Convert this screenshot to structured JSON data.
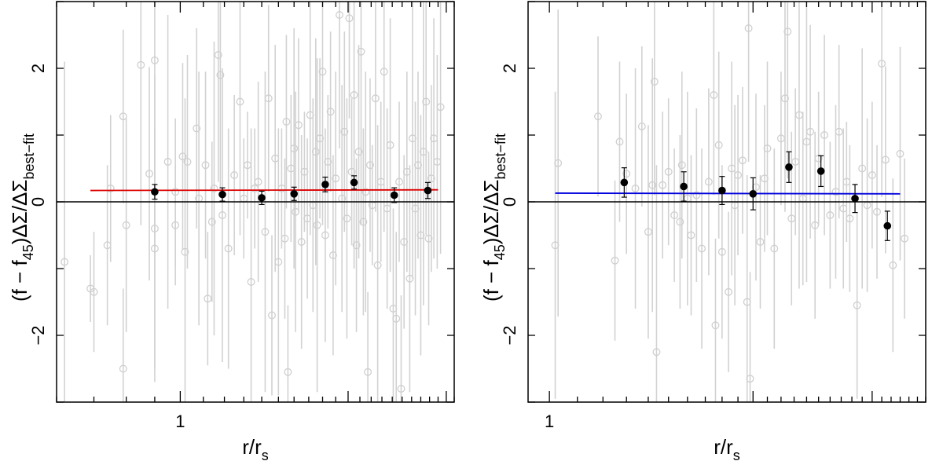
{
  "chart_data": [
    {
      "type": "scatter",
      "xscale": "log",
      "xlim": [
        0.6,
        3.1
      ],
      "ylim": [
        -3,
        3
      ],
      "xticks": [
        {
          "value": 1,
          "label": "1"
        }
      ],
      "yticks": [
        {
          "value": -2,
          "label": "−2"
        },
        {
          "value": 0,
          "label": "0"
        },
        {
          "value": 2,
          "label": "2"
        }
      ],
      "xlabel": "r/r_s",
      "ylabel": "(f−f45)ΔΣ/ΔΣbest-fit",
      "reference_line": 0,
      "fit": {
        "color": "#dd0000",
        "x": [
          0.69,
          2.9
        ],
        "y": [
          0.17,
          0.18
        ]
      },
      "binned": [
        {
          "x": 0.9,
          "y": 0.15,
          "err": 0.11
        },
        {
          "x": 1.19,
          "y": 0.11,
          "err": 0.1
        },
        {
          "x": 1.4,
          "y": 0.06,
          "err": 0.1
        },
        {
          "x": 1.6,
          "y": 0.12,
          "err": 0.1
        },
        {
          "x": 1.82,
          "y": 0.26,
          "err": 0.11
        },
        {
          "x": 2.05,
          "y": 0.29,
          "err": 0.1
        },
        {
          "x": 2.42,
          "y": 0.1,
          "err": 0.11
        },
        {
          "x": 2.78,
          "y": 0.17,
          "err": 0.12
        }
      ],
      "scatter": [
        {
          "x": 0.62,
          "y": -0.9,
          "err": 3.0
        },
        {
          "x": 0.69,
          "y": -1.3,
          "err": 0.5
        },
        {
          "x": 0.7,
          "y": -1.35,
          "err": 0.9
        },
        {
          "x": 0.74,
          "y": -0.65,
          "err": 1.2
        },
        {
          "x": 0.75,
          "y": 0.2,
          "err": 1.1
        },
        {
          "x": 0.79,
          "y": -2.5,
          "err": 1.2
        },
        {
          "x": 0.79,
          "y": 1.28,
          "err": 1.3
        },
        {
          "x": 0.8,
          "y": -0.35,
          "err": 1.6
        },
        {
          "x": 0.85,
          "y": 2.05,
          "err": 2.4
        },
        {
          "x": 0.88,
          "y": 0.42,
          "err": 1.6
        },
        {
          "x": 0.9,
          "y": 2.12,
          "err": 2.8
        },
        {
          "x": 0.9,
          "y": -0.4,
          "err": 2.3
        },
        {
          "x": 0.9,
          "y": -0.7,
          "err": 1.8
        },
        {
          "x": 0.95,
          "y": 0.6,
          "err": 2.2
        },
        {
          "x": 0.98,
          "y": 0.15,
          "err": 1.1
        },
        {
          "x": 0.98,
          "y": -0.35,
          "err": 0.9
        },
        {
          "x": 1.01,
          "y": 0.68,
          "err": 1.4
        },
        {
          "x": 1.02,
          "y": -0.75,
          "err": 2.3
        },
        {
          "x": 1.03,
          "y": 0.6,
          "err": 1.6
        },
        {
          "x": 1.07,
          "y": 1.1,
          "err": 1.5
        },
        {
          "x": 1.08,
          "y": 0.05,
          "err": 1.9
        },
        {
          "x": 1.11,
          "y": 0.55,
          "err": 1.4
        },
        {
          "x": 1.12,
          "y": -1.45,
          "err": 1.0
        },
        {
          "x": 1.14,
          "y": -0.3,
          "err": 1.2
        },
        {
          "x": 1.15,
          "y": 0.2,
          "err": 2.2
        },
        {
          "x": 1.17,
          "y": 2.2,
          "err": 1.9
        },
        {
          "x": 1.18,
          "y": 1.9,
          "err": 1.7
        },
        {
          "x": 1.19,
          "y": -0.2,
          "err": 2.2
        },
        {
          "x": 1.22,
          "y": -0.7,
          "err": 1.8
        },
        {
          "x": 1.25,
          "y": 0.4,
          "err": 1.2
        },
        {
          "x": 1.28,
          "y": 1.5,
          "err": 2.0
        },
        {
          "x": 1.3,
          "y": 0.05,
          "err": 0.9
        },
        {
          "x": 1.32,
          "y": 0.55,
          "err": 0.8
        },
        {
          "x": 1.34,
          "y": -1.2,
          "err": 2.3
        },
        {
          "x": 1.36,
          "y": 0.2,
          "err": 0.9
        },
        {
          "x": 1.38,
          "y": 0.3,
          "err": 1.5
        },
        {
          "x": 1.42,
          "y": -0.45,
          "err": 2.4
        },
        {
          "x": 1.44,
          "y": 1.55,
          "err": 1.4
        },
        {
          "x": 1.46,
          "y": -1.7,
          "err": 1.2
        },
        {
          "x": 1.48,
          "y": 0.65,
          "err": 1.7
        },
        {
          "x": 1.5,
          "y": -0.9,
          "err": 2.0
        },
        {
          "x": 1.52,
          "y": 0.2,
          "err": 0.9
        },
        {
          "x": 1.54,
          "y": -0.55,
          "err": 1.2
        },
        {
          "x": 1.55,
          "y": 1.2,
          "err": 1.3
        },
        {
          "x": 1.56,
          "y": -2.55,
          "err": 1.0
        },
        {
          "x": 1.58,
          "y": 0.5,
          "err": 1.1
        },
        {
          "x": 1.6,
          "y": 0.8,
          "err": 1.8
        },
        {
          "x": 1.61,
          "y": -0.15,
          "err": 1.8
        },
        {
          "x": 1.63,
          "y": 1.15,
          "err": 1.3
        },
        {
          "x": 1.65,
          "y": -0.6,
          "err": 1.6
        },
        {
          "x": 1.67,
          "y": 0.45,
          "err": 0.9
        },
        {
          "x": 1.69,
          "y": -0.25,
          "err": 1.2
        },
        {
          "x": 1.71,
          "y": 1.3,
          "err": 1.8
        },
        {
          "x": 1.73,
          "y": -0.05,
          "err": 1.6
        },
        {
          "x": 1.75,
          "y": 0.75,
          "err": 1.7
        },
        {
          "x": 1.76,
          "y": -0.35,
          "err": 2.5
        },
        {
          "x": 1.78,
          "y": 0.95,
          "err": 1.2
        },
        {
          "x": 1.8,
          "y": 1.95,
          "err": 2.3
        },
        {
          "x": 1.82,
          "y": -0.5,
          "err": 1.6
        },
        {
          "x": 1.84,
          "y": 0.6,
          "err": 1.0
        },
        {
          "x": 1.86,
          "y": 1.35,
          "err": 1.2
        },
        {
          "x": 1.88,
          "y": -0.8,
          "err": 1.5
        },
        {
          "x": 1.9,
          "y": 0.35,
          "err": 1.6
        },
        {
          "x": 1.93,
          "y": 2.8,
          "err": 2.0
        },
        {
          "x": 1.95,
          "y": 0.05,
          "err": 1.7
        },
        {
          "x": 1.97,
          "y": 1.05,
          "err": 1.5
        },
        {
          "x": 1.99,
          "y": -0.25,
          "err": 1.8
        },
        {
          "x": 2.01,
          "y": 2.75,
          "err": 1.5
        },
        {
          "x": 2.03,
          "y": 0.45,
          "err": 1.1
        },
        {
          "x": 2.05,
          "y": 1.6,
          "err": 2.6
        },
        {
          "x": 2.07,
          "y": -0.65,
          "err": 1.3
        },
        {
          "x": 2.09,
          "y": 0.75,
          "err": 1.6
        },
        {
          "x": 2.11,
          "y": 2.25,
          "err": 2.6
        },
        {
          "x": 2.13,
          "y": -0.3,
          "err": 1.4
        },
        {
          "x": 2.15,
          "y": 0.15,
          "err": 1.8
        },
        {
          "x": 2.17,
          "y": -2.55,
          "err": 1.2
        },
        {
          "x": 2.19,
          "y": 0.55,
          "err": 1.3
        },
        {
          "x": 2.21,
          "y": -0.05,
          "err": 0.9
        },
        {
          "x": 2.24,
          "y": 1.55,
          "err": 1.7
        },
        {
          "x": 2.26,
          "y": -0.95,
          "err": 2.1
        },
        {
          "x": 2.29,
          "y": 0.3,
          "err": 1.2
        },
        {
          "x": 2.32,
          "y": 1.95,
          "err": 2.4
        },
        {
          "x": 2.35,
          "y": -0.1,
          "err": 1.5
        },
        {
          "x": 2.38,
          "y": 0.85,
          "err": 1.9
        },
        {
          "x": 2.41,
          "y": -1.6,
          "err": 1.5
        },
        {
          "x": 2.44,
          "y": -1.75,
          "err": 1.3
        },
        {
          "x": 2.47,
          "y": 0.3,
          "err": 1.2
        },
        {
          "x": 2.49,
          "y": -2.8,
          "err": 1.4
        },
        {
          "x": 2.52,
          "y": -0.6,
          "err": 1.3
        },
        {
          "x": 2.55,
          "y": 0.45,
          "err": 1.5
        },
        {
          "x": 2.58,
          "y": -1.15,
          "err": 1.7
        },
        {
          "x": 2.61,
          "y": 0.95,
          "err": 2.1
        },
        {
          "x": 2.64,
          "y": -0.1,
          "err": 1.6
        },
        {
          "x": 2.67,
          "y": 0.55,
          "err": 1.4
        },
        {
          "x": 2.7,
          "y": -0.5,
          "err": 1.8
        },
        {
          "x": 2.73,
          "y": 0.75,
          "err": 2.3
        },
        {
          "x": 2.76,
          "y": 1.5,
          "err": 2.0
        },
        {
          "x": 2.79,
          "y": -0.55,
          "err": 1.3
        },
        {
          "x": 2.82,
          "y": 0.35,
          "err": 1.4
        },
        {
          "x": 2.85,
          "y": 0.95,
          "err": 1.8
        },
        {
          "x": 2.89,
          "y": 0.6,
          "err": 1.6
        },
        {
          "x": 2.93,
          "y": 1.42,
          "err": 2.2
        }
      ]
    },
    {
      "type": "scatter",
      "xscale": "log",
      "xlim": [
        0.93,
        3.6
      ],
      "ylim": [
        -3,
        3
      ],
      "xticks": [
        {
          "value": 1,
          "label": "1"
        }
      ],
      "yticks": [
        {
          "value": -2,
          "label": "−2"
        },
        {
          "value": 0,
          "label": "0"
        },
        {
          "value": 2,
          "label": "2"
        }
      ],
      "xlabel": "r/r_s",
      "ylabel": "(f−f45)ΔΣ/ΔΣbest-fit",
      "reference_line": 0,
      "fit": {
        "color": "#0000dd",
        "x": [
          1.02,
          3.3
        ],
        "y": [
          0.13,
          0.12
        ]
      },
      "binned": [
        {
          "x": 1.29,
          "y": 0.29,
          "err": 0.22
        },
        {
          "x": 1.58,
          "y": 0.23,
          "err": 0.22
        },
        {
          "x": 1.8,
          "y": 0.17,
          "err": 0.21
        },
        {
          "x": 2.0,
          "y": 0.12,
          "err": 0.24
        },
        {
          "x": 2.26,
          "y": 0.52,
          "err": 0.23
        },
        {
          "x": 2.52,
          "y": 0.46,
          "err": 0.23
        },
        {
          "x": 2.83,
          "y": 0.05,
          "err": 0.21
        },
        {
          "x": 3.16,
          "y": -0.36,
          "err": 0.22
        }
      ],
      "scatter": [
        {
          "x": 1.02,
          "y": -0.65,
          "err": 2.3
        },
        {
          "x": 1.03,
          "y": 0.58,
          "err": 2.3
        },
        {
          "x": 1.18,
          "y": 1.28,
          "err": 1.2
        },
        {
          "x": 1.25,
          "y": -0.88,
          "err": 1.2
        },
        {
          "x": 1.27,
          "y": 0.9,
          "err": 1.2
        },
        {
          "x": 1.3,
          "y": 0.42,
          "err": 1.2
        },
        {
          "x": 1.34,
          "y": 0.2,
          "err": 1.8
        },
        {
          "x": 1.37,
          "y": 1.13,
          "err": 1.2
        },
        {
          "x": 1.4,
          "y": -0.45,
          "err": 1.6
        },
        {
          "x": 1.42,
          "y": 0.25,
          "err": 1.9
        },
        {
          "x": 1.43,
          "y": 1.8,
          "err": 1.7
        },
        {
          "x": 1.44,
          "y": -2.25,
          "err": 2.8
        },
        {
          "x": 1.47,
          "y": 0.25,
          "err": 1.1
        },
        {
          "x": 1.5,
          "y": 0.45,
          "err": 1.1
        },
        {
          "x": 1.53,
          "y": -0.2,
          "err": 1.0
        },
        {
          "x": 1.56,
          "y": -0.3,
          "err": 1.3
        },
        {
          "x": 1.57,
          "y": 0.55,
          "err": 1.4
        },
        {
          "x": 1.6,
          "y": 0.05,
          "err": 1.6
        },
        {
          "x": 1.62,
          "y": -0.5,
          "err": 1.2
        },
        {
          "x": 1.65,
          "y": 0.1,
          "err": 1.3
        },
        {
          "x": 1.68,
          "y": -0.7,
          "err": 1.5
        },
        {
          "x": 1.72,
          "y": 0.3,
          "err": 1.4
        },
        {
          "x": 1.75,
          "y": 1.6,
          "err": 1.5
        },
        {
          "x": 1.76,
          "y": -1.85,
          "err": 1.3
        },
        {
          "x": 1.78,
          "y": 0.85,
          "err": 1.4
        },
        {
          "x": 1.8,
          "y": -0.75,
          "err": 1.3
        },
        {
          "x": 1.84,
          "y": -1.35,
          "err": 1.2
        },
        {
          "x": 1.86,
          "y": 0.5,
          "err": 1.6
        },
        {
          "x": 1.88,
          "y": -0.05,
          "err": 1.5
        },
        {
          "x": 1.9,
          "y": 0.4,
          "err": 1.2
        },
        {
          "x": 1.93,
          "y": 0.62,
          "err": 1.1
        },
        {
          "x": 1.96,
          "y": -1.5,
          "err": 1.9
        },
        {
          "x": 1.97,
          "y": 2.6,
          "err": 2.0
        },
        {
          "x": 1.98,
          "y": -2.65,
          "err": 1.6
        },
        {
          "x": 2.02,
          "y": 0.22,
          "err": 1.4
        },
        {
          "x": 2.05,
          "y": -0.6,
          "err": 1.0
        },
        {
          "x": 2.08,
          "y": 0.35,
          "err": 1.1
        },
        {
          "x": 2.1,
          "y": 0.8,
          "err": 1.3
        },
        {
          "x": 2.15,
          "y": -0.7,
          "err": 1.5
        },
        {
          "x": 2.2,
          "y": 0.95,
          "err": 1.0
        },
        {
          "x": 2.23,
          "y": 1.55,
          "err": 1.7
        },
        {
          "x": 2.25,
          "y": 2.55,
          "err": 2.2
        },
        {
          "x": 2.28,
          "y": -0.25,
          "err": 1.3
        },
        {
          "x": 2.31,
          "y": 0.6,
          "err": 1.1
        },
        {
          "x": 2.34,
          "y": 1.3,
          "err": 2.6
        },
        {
          "x": 2.37,
          "y": 0.05,
          "err": 1.3
        },
        {
          "x": 2.4,
          "y": 0.9,
          "err": 2.1
        },
        {
          "x": 2.43,
          "y": 1.05,
          "err": 1.6
        },
        {
          "x": 2.47,
          "y": -0.35,
          "err": 1.4
        },
        {
          "x": 2.5,
          "y": 0.65,
          "err": 1.0
        },
        {
          "x": 2.55,
          "y": 1.0,
          "err": 1.5
        },
        {
          "x": 2.6,
          "y": -0.2,
          "err": 1.1
        },
        {
          "x": 2.65,
          "y": 0.15,
          "err": 1.3
        },
        {
          "x": 2.68,
          "y": 1.05,
          "err": 1.3
        },
        {
          "x": 2.72,
          "y": -0.1,
          "err": 1.2
        },
        {
          "x": 2.75,
          "y": 0.3,
          "err": 0.9
        },
        {
          "x": 2.78,
          "y": -0.25,
          "err": 1.1
        },
        {
          "x": 2.85,
          "y": -1.55,
          "err": 1.4
        },
        {
          "x": 2.9,
          "y": 0.5,
          "err": 1.8
        },
        {
          "x": 2.95,
          "y": -0.05,
          "err": 1.3
        },
        {
          "x": 3.0,
          "y": 0.4,
          "err": 1.1
        },
        {
          "x": 3.05,
          "y": -0.15,
          "err": 1.0
        },
        {
          "x": 3.1,
          "y": 2.07,
          "err": 2.0
        },
        {
          "x": 3.14,
          "y": 0.63,
          "err": 1.4
        },
        {
          "x": 3.22,
          "y": -0.95,
          "err": 1.3
        },
        {
          "x": 3.3,
          "y": 0.72,
          "err": 1.6
        },
        {
          "x": 3.35,
          "y": -0.55,
          "err": 1.2
        }
      ]
    }
  ]
}
